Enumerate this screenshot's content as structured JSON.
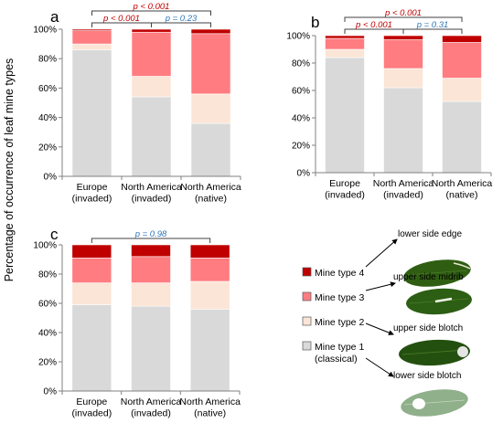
{
  "ylabel": "Percentage of occurrence of leaf mine types",
  "colors": {
    "type1": "#d9d9d9",
    "type2": "#fbe5d6",
    "type3": "#ff7c80",
    "type4": "#c00000",
    "sig": "#c00000",
    "ns": "#2e75b6"
  },
  "chart_data": [
    {
      "panel": "a",
      "type": "bar",
      "stacked": true,
      "categories": [
        [
          "Europe",
          "(invaded)"
        ],
        [
          "North America",
          "(invaded)"
        ],
        [
          "North America",
          "(native)"
        ]
      ],
      "ylim": [
        0,
        100
      ],
      "yticks": [
        "0%",
        "20%",
        "40%",
        "60%",
        "80%",
        "100%"
      ],
      "series": [
        {
          "name": "Mine type 1 (classical)",
          "values": [
            86,
            54,
            36
          ]
        },
        {
          "name": "Mine type 2",
          "values": [
            4,
            14,
            20
          ]
        },
        {
          "name": "Mine type 3",
          "values": [
            9,
            30,
            41
          ]
        },
        {
          "name": "Mine type 4",
          "values": [
            1,
            2,
            3
          ]
        }
      ],
      "comparisons": [
        {
          "from": 1,
          "to": 2,
          "label": "p = 0.23",
          "significant": false,
          "level": 1
        },
        {
          "from": 0,
          "to": 1,
          "label": "p < 0.001",
          "significant": true,
          "level": 1
        },
        {
          "from": 0,
          "to": 2,
          "label": "p < 0.001",
          "significant": true,
          "level": 2
        }
      ]
    },
    {
      "panel": "b",
      "type": "bar",
      "stacked": true,
      "categories": [
        [
          "Europe",
          "(invaded)"
        ],
        [
          "North America",
          "(invaded)"
        ],
        [
          "North America",
          "(native)"
        ]
      ],
      "ylim": [
        0,
        100
      ],
      "yticks": [
        "0%",
        "20%",
        "40%",
        "60%",
        "80%",
        "100%"
      ],
      "series": [
        {
          "name": "Mine type 1 (classical)",
          "values": [
            84,
            62,
            52
          ]
        },
        {
          "name": "Mine type 2",
          "values": [
            6,
            14,
            17
          ]
        },
        {
          "name": "Mine type 3",
          "values": [
            8,
            21,
            26
          ]
        },
        {
          "name": "Mine type 4",
          "values": [
            2,
            3,
            5
          ]
        }
      ],
      "comparisons": [
        {
          "from": 1,
          "to": 2,
          "label": "p = 0.31",
          "significant": false,
          "level": 1
        },
        {
          "from": 0,
          "to": 1,
          "label": "p < 0.001",
          "significant": true,
          "level": 1
        },
        {
          "from": 0,
          "to": 2,
          "label": "p < 0.001",
          "significant": true,
          "level": 2
        }
      ]
    },
    {
      "panel": "c",
      "type": "bar",
      "stacked": true,
      "categories": [
        [
          "Europe",
          "(invaded)"
        ],
        [
          "North America",
          "(invaded)"
        ],
        [
          "North America",
          "(native)"
        ]
      ],
      "ylim": [
        0,
        100
      ],
      "yticks": [
        "0%",
        "20%",
        "40%",
        "60%",
        "80%",
        "100%"
      ],
      "series": [
        {
          "name": "Mine type 1 (classical)",
          "values": [
            59,
            58,
            56
          ]
        },
        {
          "name": "Mine type 2",
          "values": [
            15,
            16,
            19
          ]
        },
        {
          "name": "Mine type 3",
          "values": [
            17,
            18,
            16
          ]
        },
        {
          "name": "Mine type 4",
          "values": [
            9,
            8,
            9
          ]
        }
      ],
      "comparisons": [
        {
          "from": 0,
          "to": 2,
          "label": "p = 0.98",
          "significant": false,
          "level": 1
        }
      ]
    }
  ],
  "legend": [
    {
      "key": "type4",
      "lines": [
        "Mine type 4"
      ]
    },
    {
      "key": "type3",
      "lines": [
        "Mine type 3"
      ]
    },
    {
      "key": "type2",
      "lines": [
        "Mine type 2"
      ]
    },
    {
      "key": "type1",
      "lines": [
        "Mine type 1",
        "(classical)"
      ]
    }
  ],
  "leaf_labels": [
    "lower side edge",
    "upper side midrib",
    "upper side blotch",
    "lower side blotch"
  ]
}
